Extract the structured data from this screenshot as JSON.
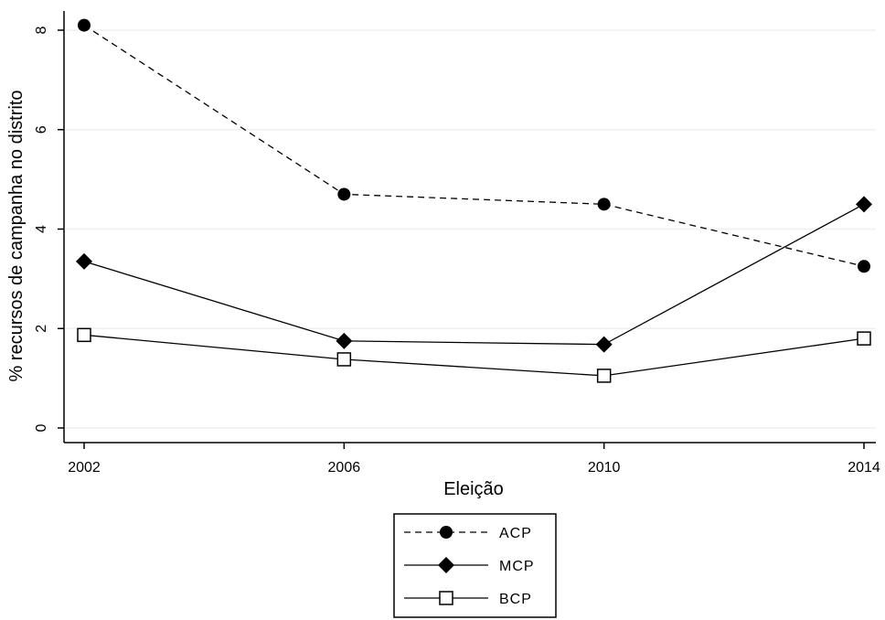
{
  "chart_data": {
    "type": "line",
    "title": "",
    "xlabel": "Eleição",
    "ylabel": "% recursos de campanha no distrito",
    "x": [
      2002,
      2006,
      2010,
      2014
    ],
    "xlim": [
      2002,
      2014
    ],
    "ylim": [
      0,
      8
    ],
    "yticks": [
      0,
      2,
      4,
      6,
      8
    ],
    "grid": true,
    "legend_position": "bottom",
    "series": [
      {
        "name": "ACP",
        "values": [
          8.1,
          4.7,
          4.5,
          3.25
        ],
        "line_style": "dashed",
        "marker": "filled-circle",
        "color": "#000000"
      },
      {
        "name": "MCP",
        "values": [
          3.35,
          1.75,
          1.68,
          4.5
        ],
        "line_style": "solid",
        "marker": "filled-diamond",
        "color": "#000000"
      },
      {
        "name": "BCP",
        "values": [
          1.87,
          1.38,
          1.05,
          1.8
        ],
        "line_style": "solid",
        "marker": "hollow-square",
        "color": "#000000"
      }
    ],
    "colors": {
      "line": "#000000",
      "grid": "#eaf2f3",
      "background": "#ffffff"
    }
  }
}
